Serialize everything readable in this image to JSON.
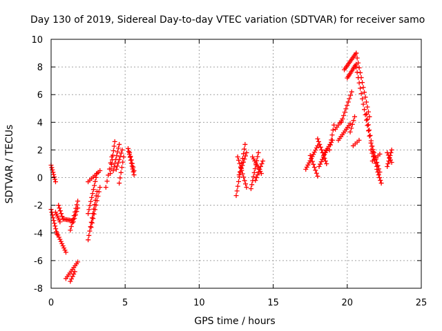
{
  "chart_data": {
    "type": "scatter",
    "title": "Day 130 of 2019, Sidereal Day-to-day VTEC variation (SDTVAR) for receiver samo",
    "xlabel": "GPS time / hours",
    "ylabel": "SDTVAR / TECUs",
    "xlim": [
      0,
      25
    ],
    "ylim": [
      -8,
      10
    ],
    "x_ticks": [
      0,
      5,
      10,
      15,
      20,
      25
    ],
    "x_tick_labels": [
      "0",
      "5",
      "10",
      "15",
      "20",
      "25"
    ],
    "y_ticks": [
      -8,
      -6,
      -4,
      -2,
      0,
      2,
      4,
      6,
      8,
      10
    ],
    "y_tick_labels": [
      "-8",
      "-6",
      "-4",
      "-2",
      "0",
      "2",
      "4",
      "6",
      "8",
      "10"
    ],
    "grid": true,
    "marker": "plus",
    "color": "#ff0000",
    "series": [
      {
        "name": "SDTVAR",
        "segments": [
          {
            "x0": 0.0,
            "y0": 0.9,
            "x1": 0.3,
            "y1": -0.3,
            "n": 8
          },
          {
            "x0": 0.0,
            "y0": -2.3,
            "x1": 0.4,
            "y1": -4.1,
            "n": 10
          },
          {
            "x0": 0.3,
            "y0": -2.5,
            "x1": 0.6,
            "y1": -3.2,
            "n": 6
          },
          {
            "x0": 0.4,
            "y0": -4.0,
            "x1": 1.0,
            "y1": -5.4,
            "n": 10
          },
          {
            "x0": 0.5,
            "y0": -2.0,
            "x1": 0.8,
            "y1": -3.0,
            "n": 6
          },
          {
            "x0": 0.8,
            "y0": -3.0,
            "x1": 1.4,
            "y1": -3.1,
            "n": 8
          },
          {
            "x0": 1.0,
            "y0": -7.3,
            "x1": 1.8,
            "y1": -6.1,
            "n": 10
          },
          {
            "x0": 1.3,
            "y0": -7.5,
            "x1": 1.6,
            "y1": -6.8,
            "n": 5
          },
          {
            "x0": 1.3,
            "y0": -3.8,
            "x1": 1.8,
            "y1": -1.7,
            "n": 9
          },
          {
            "x0": 1.5,
            "y0": -3.2,
            "x1": 1.8,
            "y1": -2.2,
            "n": 5
          },
          {
            "x0": 2.5,
            "y0": -4.5,
            "x1": 3.1,
            "y1": -1.0,
            "n": 12
          },
          {
            "x0": 2.5,
            "y0": -2.6,
            "x1": 3.1,
            "y1": 0.3,
            "n": 11
          },
          {
            "x0": 2.7,
            "y0": -3.6,
            "x1": 3.3,
            "y1": -0.7,
            "n": 10
          },
          {
            "x0": 2.5,
            "y0": -0.3,
            "x1": 3.3,
            "y1": 0.5,
            "n": 8
          },
          {
            "x0": 3.7,
            "y0": -0.7,
            "x1": 4.1,
            "y1": 1.5,
            "n": 6
          },
          {
            "x0": 4.0,
            "y0": 0.3,
            "x1": 4.3,
            "y1": 2.6,
            "n": 8
          },
          {
            "x0": 4.2,
            "y0": 0.5,
            "x1": 4.6,
            "y1": 2.4,
            "n": 8
          },
          {
            "x0": 4.4,
            "y0": 0.6,
            "x1": 4.8,
            "y1": 2.0,
            "n": 7
          },
          {
            "x0": 4.6,
            "y0": -0.4,
            "x1": 4.9,
            "y1": 1.5,
            "n": 6
          },
          {
            "x0": 5.2,
            "y0": 2.1,
            "x1": 5.6,
            "y1": 0.2,
            "n": 10
          },
          {
            "x0": 5.3,
            "y0": 1.8,
            "x1": 5.6,
            "y1": 0.5,
            "n": 6
          },
          {
            "x0": 12.5,
            "y0": -1.3,
            "x1": 13.1,
            "y1": 2.4,
            "n": 12
          },
          {
            "x0": 12.6,
            "y0": 1.5,
            "x1": 13.2,
            "y1": -0.7,
            "n": 10
          },
          {
            "x0": 12.7,
            "y0": 0.2,
            "x1": 13.2,
            "y1": 1.8,
            "n": 8
          },
          {
            "x0": 13.5,
            "y0": -0.8,
            "x1": 14.0,
            "y1": 1.8,
            "n": 10
          },
          {
            "x0": 13.6,
            "y0": 1.5,
            "x1": 14.2,
            "y1": 0.3,
            "n": 9
          },
          {
            "x0": 13.8,
            "y0": -0.2,
            "x1": 14.3,
            "y1": 1.2,
            "n": 8
          },
          {
            "x0": 17.2,
            "y0": 0.6,
            "x1": 18.0,
            "y1": 2.3,
            "n": 12
          },
          {
            "x0": 17.5,
            "y0": 1.6,
            "x1": 18.0,
            "y1": 0.1,
            "n": 8
          },
          {
            "x0": 18.0,
            "y0": 2.8,
            "x1": 18.6,
            "y1": 1.0,
            "n": 10
          },
          {
            "x0": 18.1,
            "y0": 0.8,
            "x1": 18.6,
            "y1": 2.0,
            "n": 8
          },
          {
            "x0": 18.5,
            "y0": 1.8,
            "x1": 19.0,
            "y1": 2.7,
            "n": 7
          },
          {
            "x0": 18.8,
            "y0": 2.0,
            "x1": 19.1,
            "y1": 3.8,
            "n": 6
          },
          {
            "x0": 19.2,
            "y0": 3.5,
            "x1": 19.6,
            "y1": 4.1,
            "n": 5
          },
          {
            "x0": 19.4,
            "y0": 2.7,
            "x1": 20.2,
            "y1": 3.9,
            "n": 10
          },
          {
            "x0": 19.6,
            "y0": 4.0,
            "x1": 20.3,
            "y1": 6.2,
            "n": 10
          },
          {
            "x0": 19.8,
            "y0": 7.8,
            "x1": 20.6,
            "y1": 9.0,
            "n": 12
          },
          {
            "x0": 20.0,
            "y0": 7.2,
            "x1": 20.6,
            "y1": 8.2,
            "n": 10
          },
          {
            "x0": 20.6,
            "y0": 9.0,
            "x1": 21.5,
            "y1": 4.4,
            "n": 14
          },
          {
            "x0": 20.6,
            "y0": 8.0,
            "x1": 21.5,
            "y1": 3.0,
            "n": 14
          },
          {
            "x0": 21.3,
            "y0": 4.6,
            "x1": 21.8,
            "y1": 1.5,
            "n": 9
          },
          {
            "x0": 20.2,
            "y0": 3.3,
            "x1": 20.5,
            "y1": 4.4,
            "n": 5
          },
          {
            "x0": 20.4,
            "y0": 2.3,
            "x1": 20.8,
            "y1": 2.7,
            "n": 4
          },
          {
            "x0": 21.6,
            "y0": 2.5,
            "x1": 22.2,
            "y1": 0.4,
            "n": 10
          },
          {
            "x0": 21.6,
            "y0": 2.0,
            "x1": 22.0,
            "y1": 0.8,
            "n": 6
          },
          {
            "x0": 22.0,
            "y0": 0.6,
            "x1": 22.3,
            "y1": -0.4,
            "n": 6
          },
          {
            "x0": 21.7,
            "y0": 1.2,
            "x1": 22.2,
            "y1": 1.7,
            "n": 5
          },
          {
            "x0": 22.7,
            "y0": 0.8,
            "x1": 23.0,
            "y1": 2.0,
            "n": 7
          },
          {
            "x0": 22.7,
            "y0": 1.8,
            "x1": 23.0,
            "y1": 1.1,
            "n": 5
          }
        ]
      }
    ]
  }
}
